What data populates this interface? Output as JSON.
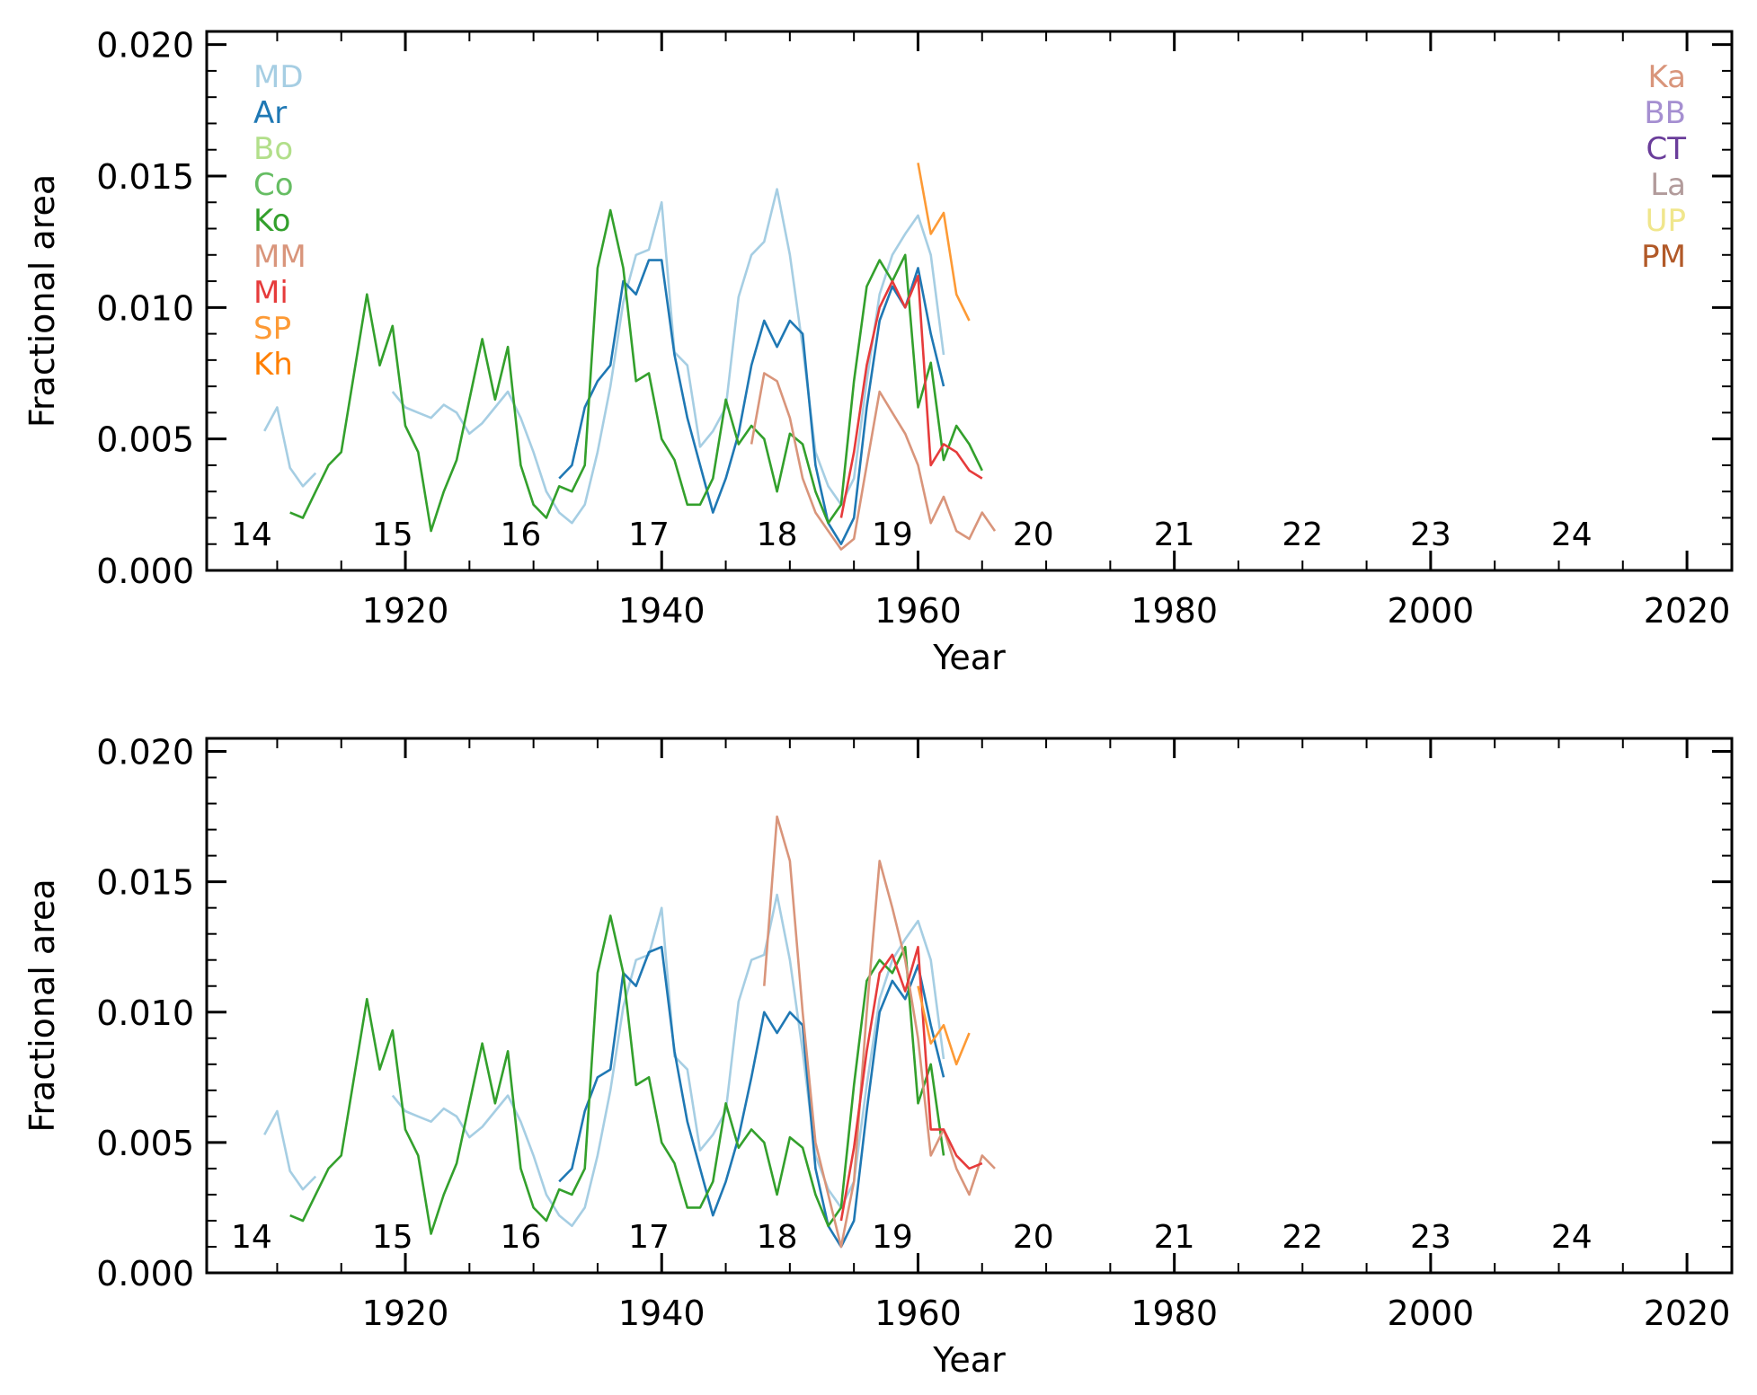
{
  "chart_data": [
    {
      "type": "line",
      "xlabel": "Year",
      "ylabel": "Fractional area",
      "xlim": [
        1904.5,
        2023.5
      ],
      "ylim": [
        0,
        0.0205
      ],
      "xticks": [
        1920,
        1940,
        1960,
        1980,
        2000,
        2020
      ],
      "xtick_labels": [
        "1920",
        "1940",
        "1960",
        "1980",
        "2000",
        "2020"
      ],
      "yticks": [
        0,
        0.005,
        0.01,
        0.015,
        0.02
      ],
      "ytick_labels": [
        "0.000",
        "0.005",
        "0.010",
        "0.015",
        "0.020"
      ],
      "grid": false,
      "legend_left": [
        "MD",
        "Ar",
        "Bo",
        "Co",
        "Ko",
        "MM",
        "Mi",
        "SP",
        "Kh"
      ],
      "legend_right": [
        "Ka",
        "BB",
        "CT",
        "La",
        "UP",
        "PM"
      ],
      "cycle_labels": [
        {
          "text": "14",
          "year": 1908
        },
        {
          "text": "15",
          "year": 1919
        },
        {
          "text": "16",
          "year": 1929
        },
        {
          "text": "17",
          "year": 1939
        },
        {
          "text": "18",
          "year": 1949
        },
        {
          "text": "19",
          "year": 1958
        },
        {
          "text": "20",
          "year": 1969
        },
        {
          "text": "21",
          "year": 1980
        },
        {
          "text": "22",
          "year": 1990
        },
        {
          "text": "23",
          "year": 2000
        },
        {
          "text": "24",
          "year": 2011
        }
      ],
      "series": [
        {
          "name": "MD",
          "color": "#a6cee3",
          "x": [
            1909,
            1910,
            1911,
            1912,
            1913,
            1919,
            1920,
            1921,
            1922,
            1923,
            1924,
            1925,
            1926,
            1927,
            1928,
            1929,
            1930,
            1931,
            1932,
            1933,
            1934,
            1935,
            1936,
            1937,
            1938,
            1939,
            1940,
            1941,
            1942,
            1943,
            1944,
            1945,
            1946,
            1947,
            1948,
            1949,
            1950,
            1951,
            1952,
            1953,
            1954,
            1955,
            1956,
            1957,
            1958,
            1959,
            1960,
            1961,
            1962
          ],
          "values": [
            0.0053,
            0.0062,
            0.0039,
            0.0032,
            0.0037,
            0.0068,
            0.0062,
            0.006,
            0.0058,
            0.0063,
            0.006,
            0.0052,
            0.0056,
            0.0062,
            0.0068,
            0.0058,
            0.0045,
            0.003,
            0.0022,
            0.0018,
            0.0025,
            0.0045,
            0.007,
            0.0102,
            0.012,
            0.0122,
            0.014,
            0.0083,
            0.0078,
            0.0047,
            0.0053,
            0.0062,
            0.0104,
            0.012,
            0.0125,
            0.0145,
            0.012,
            0.0085,
            0.0045,
            0.0032,
            0.0025,
            0.0035,
            0.0072,
            0.0105,
            0.012,
            0.0128,
            0.0135,
            0.012,
            0.0082
          ]
        },
        {
          "name": "Ar",
          "color": "#1f78b4",
          "x": [
            1932,
            1933,
            1934,
            1935,
            1936,
            1937,
            1938,
            1939,
            1940,
            1941,
            1942,
            1943,
            1944,
            1945,
            1946,
            1947,
            1948,
            1949,
            1950,
            1951,
            1952,
            1953,
            1954,
            1955,
            1956,
            1957,
            1958,
            1959,
            1960,
            1961,
            1962
          ],
          "values": [
            0.0035,
            0.004,
            0.0062,
            0.0072,
            0.0078,
            0.011,
            0.0105,
            0.0118,
            0.0118,
            0.0082,
            0.0058,
            0.004,
            0.0022,
            0.0035,
            0.0052,
            0.0078,
            0.0095,
            0.0085,
            0.0095,
            0.009,
            0.004,
            0.0018,
            0.001,
            0.002,
            0.0062,
            0.0095,
            0.0108,
            0.01,
            0.0115,
            0.009,
            0.007
          ]
        },
        {
          "name": "Ko",
          "color": "#33a02c",
          "x": [
            1911,
            1912,
            1913,
            1914,
            1915,
            1916,
            1917,
            1918,
            1919,
            1920,
            1921,
            1922,
            1923,
            1924,
            1925,
            1926,
            1927,
            1928,
            1929,
            1930,
            1931,
            1932,
            1933,
            1934,
            1935,
            1936,
            1937,
            1938,
            1939,
            1940,
            1941,
            1942,
            1943,
            1944,
            1945,
            1946,
            1947,
            1948,
            1949,
            1950,
            1951,
            1952,
            1953,
            1954,
            1955,
            1956,
            1957,
            1958,
            1959,
            1960,
            1961,
            1962,
            1963,
            1964,
            1965
          ],
          "values": [
            0.0022,
            0.002,
            0.003,
            0.004,
            0.0045,
            0.0075,
            0.0105,
            0.0078,
            0.0093,
            0.0055,
            0.0045,
            0.0015,
            0.003,
            0.0042,
            0.0065,
            0.0088,
            0.0065,
            0.0085,
            0.004,
            0.0025,
            0.002,
            0.0032,
            0.003,
            0.004,
            0.0115,
            0.0137,
            0.0115,
            0.0072,
            0.0075,
            0.005,
            0.0042,
            0.0025,
            0.0025,
            0.0035,
            0.0065,
            0.0048,
            0.0055,
            0.005,
            0.003,
            0.0052,
            0.0048,
            0.003,
            0.0018,
            0.0025,
            0.0072,
            0.0108,
            0.0118,
            0.011,
            0.012,
            0.0062,
            0.0079,
            0.0042,
            0.0055,
            0.0048,
            0.0038
          ]
        },
        {
          "name": "MM",
          "color": "#d9957b",
          "x": [
            1947,
            1948,
            1949,
            1950,
            1951,
            1952,
            1953,
            1954,
            1955,
            1956,
            1957,
            1958,
            1959,
            1960,
            1961,
            1962,
            1963,
            1964,
            1965,
            1966
          ],
          "values": [
            0.0048,
            0.0075,
            0.0072,
            0.0058,
            0.0035,
            0.0022,
            0.0015,
            0.0008,
            0.0012,
            0.004,
            0.0068,
            0.006,
            0.0052,
            0.004,
            0.0018,
            0.0028,
            0.0015,
            0.0012,
            0.0022,
            0.0015
          ]
        },
        {
          "name": "Mi",
          "color": "#e63b3b",
          "x": [
            1954,
            1955,
            1956,
            1957,
            1958,
            1959,
            1960,
            1961,
            1962,
            1963,
            1964,
            1965
          ],
          "values": [
            0.002,
            0.0045,
            0.0078,
            0.01,
            0.011,
            0.01,
            0.0112,
            0.004,
            0.0048,
            0.0045,
            0.0038,
            0.0035
          ]
        },
        {
          "name": "SP",
          "color": "#fd9a35",
          "x": [
            1960,
            1961,
            1962,
            1963,
            1964
          ],
          "values": [
            0.0155,
            0.0128,
            0.0136,
            0.0105,
            0.0095
          ]
        }
      ]
    },
    {
      "type": "line",
      "xlabel": "Year",
      "ylabel": "Fractional area",
      "xlim": [
        1904.5,
        2023.5
      ],
      "ylim": [
        0,
        0.0205
      ],
      "xticks": [
        1920,
        1940,
        1960,
        1980,
        2000,
        2020
      ],
      "xtick_labels": [
        "1920",
        "1940",
        "1960",
        "1980",
        "2000",
        "2020"
      ],
      "yticks": [
        0,
        0.005,
        0.01,
        0.015,
        0.02
      ],
      "ytick_labels": [
        "0.000",
        "0.005",
        "0.010",
        "0.015",
        "0.020"
      ],
      "grid": false,
      "cycle_labels": [
        {
          "text": "14",
          "year": 1908
        },
        {
          "text": "15",
          "year": 1919
        },
        {
          "text": "16",
          "year": 1929
        },
        {
          "text": "17",
          "year": 1939
        },
        {
          "text": "18",
          "year": 1949
        },
        {
          "text": "19",
          "year": 1958
        },
        {
          "text": "20",
          "year": 1969
        },
        {
          "text": "21",
          "year": 1980
        },
        {
          "text": "22",
          "year": 1990
        },
        {
          "text": "23",
          "year": 2000
        },
        {
          "text": "24",
          "year": 2011
        }
      ],
      "series": [
        {
          "name": "MD",
          "color": "#a6cee3",
          "x": [
            1909,
            1910,
            1911,
            1912,
            1913,
            1919,
            1920,
            1921,
            1922,
            1923,
            1924,
            1925,
            1926,
            1927,
            1928,
            1929,
            1930,
            1931,
            1932,
            1933,
            1934,
            1935,
            1936,
            1937,
            1938,
            1939,
            1940,
            1941,
            1942,
            1943,
            1944,
            1945,
            1946,
            1947,
            1948,
            1949,
            1950,
            1951,
            1952,
            1953,
            1954,
            1955,
            1956,
            1957,
            1958,
            1959,
            1960,
            1961,
            1962
          ],
          "values": [
            0.0053,
            0.0062,
            0.0039,
            0.0032,
            0.0037,
            0.0068,
            0.0062,
            0.006,
            0.0058,
            0.0063,
            0.006,
            0.0052,
            0.0056,
            0.0062,
            0.0068,
            0.0058,
            0.0045,
            0.003,
            0.0022,
            0.0018,
            0.0025,
            0.0045,
            0.007,
            0.0102,
            0.012,
            0.0122,
            0.014,
            0.0083,
            0.0078,
            0.0047,
            0.0053,
            0.0062,
            0.0104,
            0.012,
            0.0122,
            0.0145,
            0.012,
            0.0085,
            0.0045,
            0.0032,
            0.0025,
            0.0035,
            0.0072,
            0.0105,
            0.012,
            0.0128,
            0.0135,
            0.012,
            0.0082
          ]
        },
        {
          "name": "Ar",
          "color": "#1f78b4",
          "x": [
            1932,
            1933,
            1934,
            1935,
            1936,
            1937,
            1938,
            1939,
            1940,
            1941,
            1942,
            1943,
            1944,
            1945,
            1946,
            1947,
            1948,
            1949,
            1950,
            1951,
            1952,
            1953,
            1954,
            1955,
            1956,
            1957,
            1958,
            1959,
            1960,
            1961,
            1962
          ],
          "values": [
            0.0035,
            0.004,
            0.0062,
            0.0075,
            0.0078,
            0.0115,
            0.011,
            0.0123,
            0.0125,
            0.0085,
            0.0058,
            0.004,
            0.0022,
            0.0035,
            0.0052,
            0.0075,
            0.01,
            0.0092,
            0.01,
            0.0095,
            0.004,
            0.0018,
            0.001,
            0.002,
            0.0062,
            0.01,
            0.0112,
            0.0105,
            0.0118,
            0.0095,
            0.0075
          ]
        },
        {
          "name": "Ko",
          "color": "#33a02c",
          "x": [
            1911,
            1912,
            1913,
            1914,
            1915,
            1916,
            1917,
            1918,
            1919,
            1920,
            1921,
            1922,
            1923,
            1924,
            1925,
            1926,
            1927,
            1928,
            1929,
            1930,
            1931,
            1932,
            1933,
            1934,
            1935,
            1936,
            1937,
            1938,
            1939,
            1940,
            1941,
            1942,
            1943,
            1944,
            1945,
            1946,
            1947,
            1948,
            1949,
            1950,
            1951,
            1952,
            1953,
            1954,
            1955,
            1956,
            1957,
            1958,
            1959,
            1960,
            1961,
            1962
          ],
          "values": [
            0.0022,
            0.002,
            0.003,
            0.004,
            0.0045,
            0.0075,
            0.0105,
            0.0078,
            0.0093,
            0.0055,
            0.0045,
            0.0015,
            0.003,
            0.0042,
            0.0065,
            0.0088,
            0.0065,
            0.0085,
            0.004,
            0.0025,
            0.002,
            0.0032,
            0.003,
            0.004,
            0.0115,
            0.0137,
            0.0115,
            0.0072,
            0.0075,
            0.005,
            0.0042,
            0.0025,
            0.0025,
            0.0035,
            0.0065,
            0.0048,
            0.0055,
            0.005,
            0.003,
            0.0052,
            0.0048,
            0.003,
            0.0018,
            0.0025,
            0.0072,
            0.0112,
            0.012,
            0.0115,
            0.0125,
            0.0065,
            0.008,
            0.0045
          ]
        },
        {
          "name": "MM",
          "color": "#d9957b",
          "x": [
            1948,
            1949,
            1950,
            1951,
            1952,
            1953,
            1954,
            1955,
            1956,
            1957,
            1958,
            1959,
            1960,
            1961,
            1962,
            1963,
            1964,
            1965,
            1966
          ],
          "values": [
            0.011,
            0.0175,
            0.0158,
            0.01,
            0.005,
            0.003,
            0.001,
            0.0035,
            0.01,
            0.0158,
            0.014,
            0.012,
            0.009,
            0.0045,
            0.0055,
            0.004,
            0.003,
            0.0045,
            0.004
          ]
        },
        {
          "name": "Mi",
          "color": "#e63b3b",
          "x": [
            1954,
            1955,
            1956,
            1957,
            1958,
            1959,
            1960,
            1961,
            1962,
            1963,
            1964,
            1965
          ],
          "values": [
            0.002,
            0.0048,
            0.0085,
            0.0115,
            0.0122,
            0.0108,
            0.0125,
            0.0055,
            0.0055,
            0.0045,
            0.004,
            0.0042
          ]
        },
        {
          "name": "SP",
          "color": "#fd9a35",
          "x": [
            1960,
            1961,
            1962,
            1963,
            1964
          ],
          "values": [
            0.011,
            0.0088,
            0.0095,
            0.008,
            0.0092
          ]
        }
      ]
    }
  ]
}
